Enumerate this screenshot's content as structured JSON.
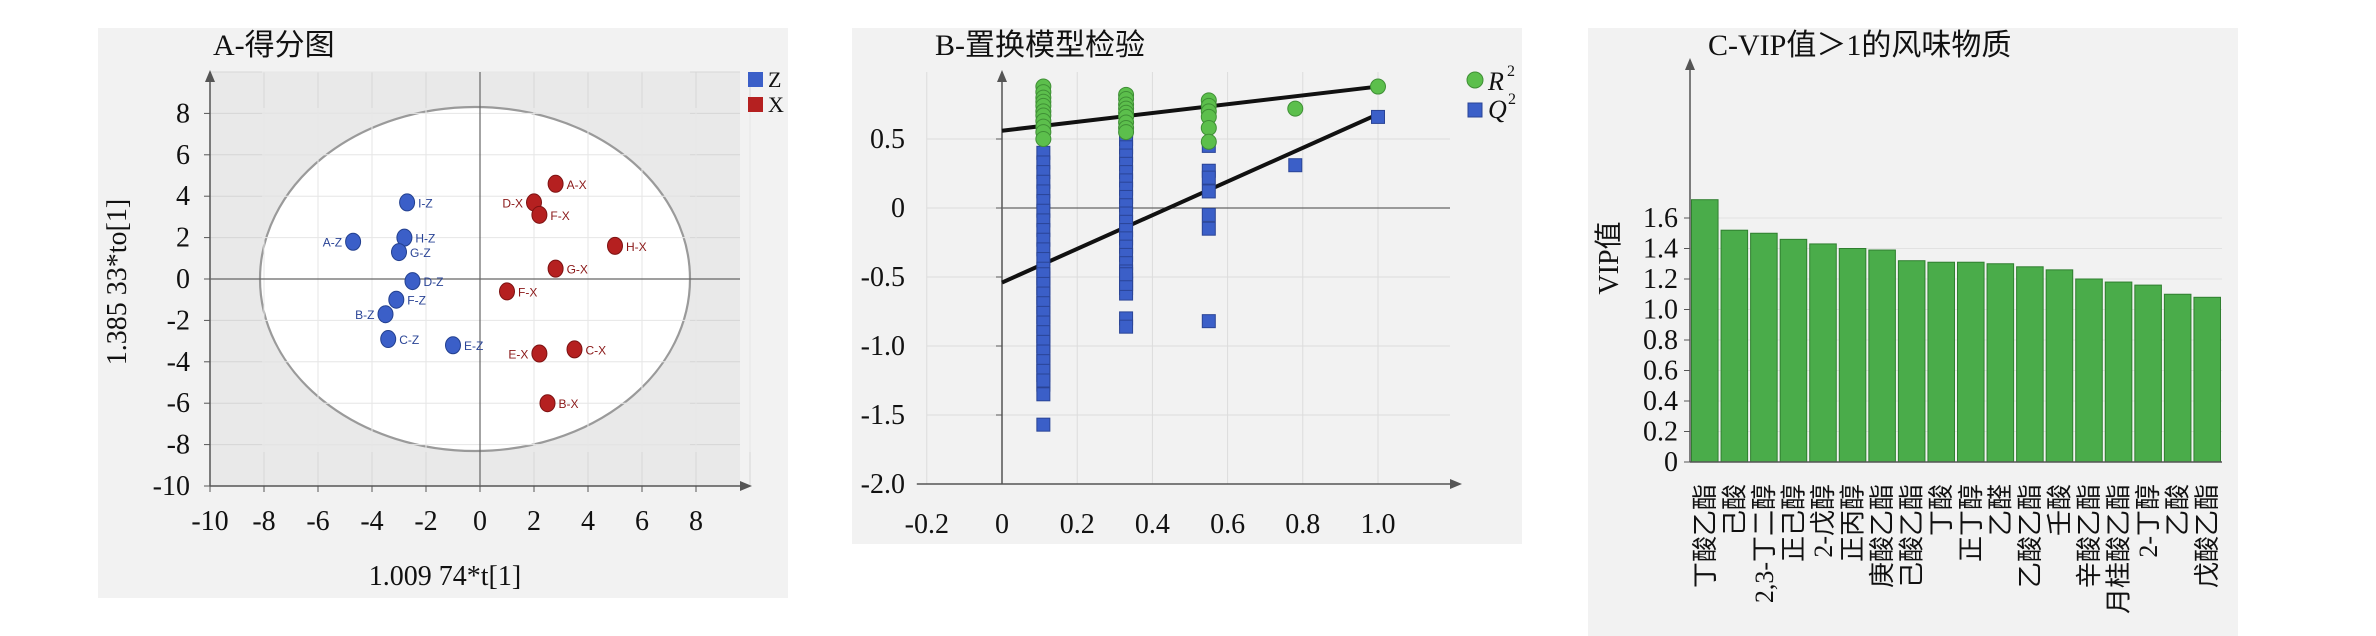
{
  "chart_data": [
    {
      "id": "A",
      "type": "scatter",
      "title": "A-得分图",
      "xlabel": "1.009 74*t[1]",
      "ylabel": "1.385 33*to[1]",
      "xlim": [
        -10,
        10
      ],
      "ylim": [
        -10,
        10
      ],
      "xticks": [
        "-10",
        "-8",
        "-6",
        "-4",
        "-2",
        "0",
        "2",
        "4",
        "6",
        "8"
      ],
      "yticks": [
        "8",
        "6",
        "4",
        "2",
        "0",
        "-2",
        "-4",
        "-6",
        "-8",
        "-10"
      ],
      "grid": true,
      "legend_position": "top-right",
      "series": [
        {
          "name": "Z",
          "color": "#3b5fc8",
          "points": [
            {
              "label": "I-Z",
              "x": -2.7,
              "y": 3.7
            },
            {
              "label": "H-Z",
              "x": -2.8,
              "y": 2.0
            },
            {
              "label": "A-Z",
              "x": -4.7,
              "y": 1.8
            },
            {
              "label": "G-Z",
              "x": -3.0,
              "y": 1.3
            },
            {
              "label": "D-Z",
              "x": -2.5,
              "y": -0.1
            },
            {
              "label": "F-Z",
              "x": -3.1,
              "y": -1.0
            },
            {
              "label": "B-Z",
              "x": -3.5,
              "y": -1.7
            },
            {
              "label": "C-Z",
              "x": -3.4,
              "y": -2.9
            },
            {
              "label": "E-Z",
              "x": -1.0,
              "y": -3.2
            }
          ]
        },
        {
          "name": "X",
          "color": "#b52020",
          "points": [
            {
              "label": "A-X",
              "x": 2.8,
              "y": 4.6
            },
            {
              "label": "D-X",
              "x": 2.0,
              "y": 3.7
            },
            {
              "label": "F-X",
              "x": 2.2,
              "y": 3.1
            },
            {
              "label": "H-X",
              "x": 5.0,
              "y": 1.6
            },
            {
              "label": "G-X",
              "x": 2.8,
              "y": 0.5
            },
            {
              "label": "F-X",
              "x": 1.0,
              "y": -0.6
            },
            {
              "label": "E-X",
              "x": 2.2,
              "y": -3.6
            },
            {
              "label": "C-X",
              "x": 3.5,
              "y": -3.4
            },
            {
              "label": "B-X",
              "x": 2.5,
              "y": -6.0
            }
          ]
        }
      ]
    },
    {
      "id": "B",
      "type": "scatter",
      "title": "B-置换模型检验",
      "xlim": [
        -0.2,
        1.2
      ],
      "ylim": [
        -2.0,
        0.9
      ],
      "xticks": [
        "-0.2",
        "0",
        "0.2",
        "0.4",
        "0.6",
        "0.8",
        "1.0"
      ],
      "yticks": [
        "0.5",
        "0",
        "-0.5",
        "-1.0",
        "-1.5",
        "-2.0"
      ],
      "grid": true,
      "legend_position": "top-right",
      "series": [
        {
          "name": "R",
          "sup": "2",
          "color": "#5cbf4c",
          "x": [
            0.11,
            0.11,
            0.11,
            0.11,
            0.11,
            0.11,
            0.11,
            0.11,
            0.11,
            0.11,
            0.11,
            0.33,
            0.33,
            0.33,
            0.33,
            0.33,
            0.33,
            0.33,
            0.33,
            0.33,
            0.55,
            0.55,
            0.55,
            0.55,
            0.55,
            0.55,
            0.78,
            1.0
          ],
          "y": [
            0.88,
            0.84,
            0.8,
            0.77,
            0.74,
            0.7,
            0.67,
            0.63,
            0.59,
            0.55,
            0.5,
            0.82,
            0.79,
            0.75,
            0.72,
            0.69,
            0.66,
            0.62,
            0.58,
            0.55,
            0.78,
            0.74,
            0.7,
            0.66,
            0.58,
            0.48,
            0.72,
            0.88
          ]
        },
        {
          "name": "Q",
          "sup": "2",
          "color": "#3b5fc8",
          "x": [
            0.11,
            0.11,
            0.11,
            0.11,
            0.11,
            0.11,
            0.11,
            0.11,
            0.11,
            0.11,
            0.11,
            0.11,
            0.11,
            0.11,
            0.11,
            0.11,
            0.11,
            0.11,
            0.11,
            0.11,
            0.11,
            0.11,
            0.11,
            0.11,
            0.11,
            0.11,
            0.11,
            0.11,
            0.11,
            0.11,
            0.11,
            0.11,
            0.11,
            0.11,
            0.11,
            0.11,
            0.11,
            0.11,
            0.11,
            0.33,
            0.33,
            0.33,
            0.33,
            0.33,
            0.33,
            0.33,
            0.33,
            0.33,
            0.33,
            0.33,
            0.33,
            0.33,
            0.33,
            0.33,
            0.33,
            0.33,
            0.33,
            0.33,
            0.33,
            0.33,
            0.33,
            0.33,
            0.33,
            0.33,
            0.33,
            0.55,
            0.55,
            0.55,
            0.55,
            0.55,
            0.55,
            0.55,
            0.78,
            1.0
          ],
          "y": [
            0.4,
            0.33,
            0.26,
            0.19,
            0.12,
            0.05,
            -0.02,
            -0.09,
            -0.16,
            -0.23,
            -0.3,
            -0.37,
            -0.44,
            -0.51,
            -0.58,
            -0.65,
            -0.72,
            -0.79,
            -0.86,
            -0.93,
            -1.0,
            -1.07,
            -1.14,
            -1.21,
            -1.28,
            -0.48,
            -0.55,
            -0.62,
            -0.69,
            -0.76,
            -0.83,
            -0.9,
            -0.97,
            -1.04,
            -1.11,
            -1.18,
            -1.25,
            -1.35,
            -1.57,
            0.62,
            0.56,
            0.5,
            0.44,
            0.38,
            0.32,
            0.26,
            0.2,
            0.14,
            0.08,
            0.02,
            -0.04,
            -0.1,
            -0.16,
            -0.22,
            -0.28,
            -0.34,
            -0.4,
            -0.46,
            -0.52,
            -0.58,
            -0.62,
            -0.8,
            -0.86,
            -0.55,
            -0.48,
            0.45,
            0.27,
            0.22,
            0.12,
            -0.05,
            -0.15,
            -0.82,
            0.31,
            0.66
          ]
        }
      ],
      "lines": [
        {
          "name": "R",
          "from": [
            0.0,
            0.56
          ],
          "to": [
            1.0,
            0.88
          ]
        },
        {
          "name": "Q",
          "from": [
            0.0,
            -0.54
          ],
          "to": [
            1.0,
            0.68
          ]
        }
      ]
    },
    {
      "id": "C",
      "type": "bar",
      "title": "C-VIP值＞1的风味物质",
      "ylabel": "VIP值",
      "ylim": [
        0,
        1.8
      ],
      "yticks": [
        "0",
        "0.2",
        "0.4",
        "0.6",
        "0.8",
        "1.0",
        "1.2",
        "1.4",
        "1.6"
      ],
      "color": "#4aac4a",
      "categories": [
        "丁酸乙酯",
        "己酸",
        "2,3-丁二醇",
        "正己醇",
        "2-戊醇",
        "正丙醇",
        "庚酸乙酯",
        "己酸乙酯",
        "丁酸",
        "正丁醇",
        "乙醛",
        "乙酸乙酯",
        "壬酸",
        "辛酸乙酯",
        "月桂酸乙酯",
        "2-丁醇",
        "乙酸",
        "戊酸乙酯"
      ],
      "values": [
        1.72,
        1.52,
        1.5,
        1.46,
        1.43,
        1.4,
        1.39,
        1.32,
        1.31,
        1.31,
        1.3,
        1.28,
        1.26,
        1.2,
        1.18,
        1.16,
        1.1,
        1.08
      ]
    }
  ]
}
